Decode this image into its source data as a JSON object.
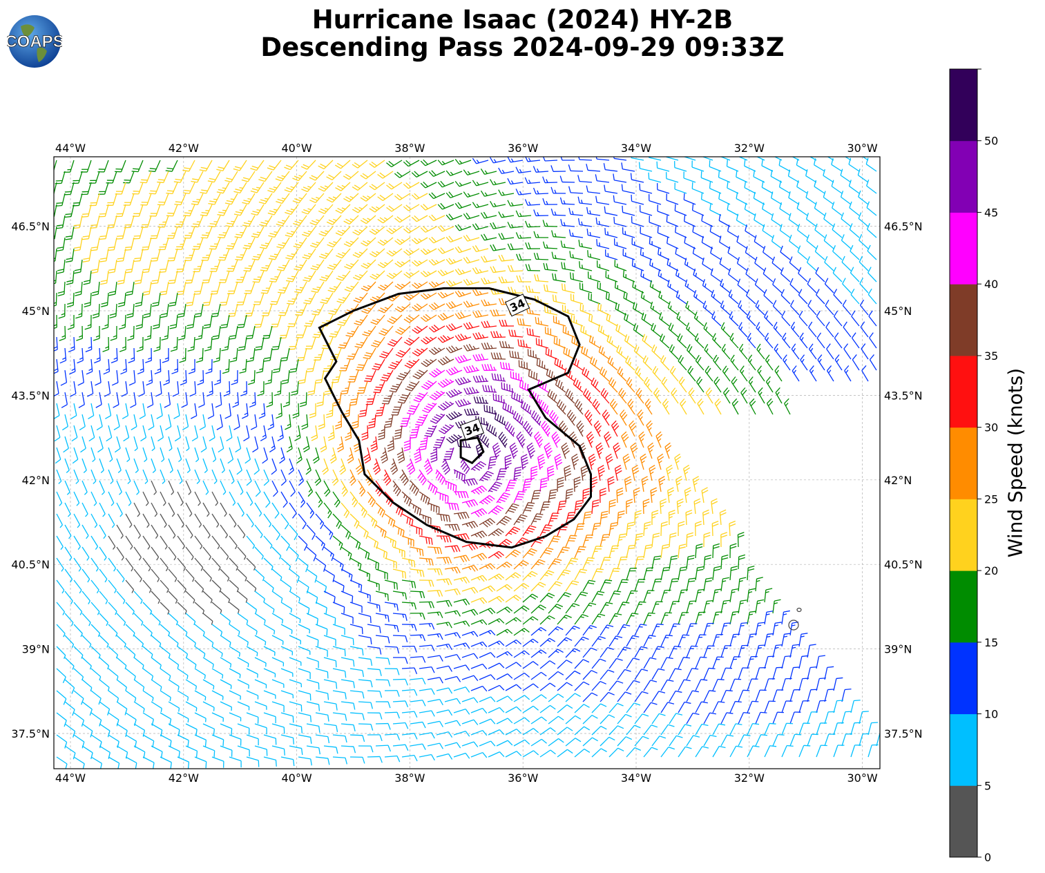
{
  "title": {
    "line1": "Hurricane Isaac (2024) HY-2B",
    "line2": "Descending Pass 2024-09-29 09:33Z"
  },
  "logo": {
    "text": "COAPS"
  },
  "map": {
    "lon_range": [
      -44.3,
      -29.7
    ],
    "lat_range": [
      36.9,
      47.7
    ],
    "lon_ticks": [
      "44°W",
      "42°W",
      "40°W",
      "38°W",
      "36°W",
      "34°W",
      "32°W",
      "30°W"
    ],
    "lat_ticks": [
      "37.5°N",
      "39°N",
      "40.5°N",
      "42°N",
      "43.5°N",
      "45°N",
      "46.5°N"
    ],
    "gridlines": true,
    "storm_center": {
      "lon": -37.0,
      "lat": 42.4
    },
    "contour_label": "34",
    "contour_label_count": 2
  },
  "colorbar": {
    "label": "Wind Speed (knots)",
    "ticks": [
      "0",
      "5",
      "10",
      "15",
      "20",
      "25",
      "30",
      "35",
      "40",
      "45",
      "50"
    ],
    "bins": [
      {
        "from": 0,
        "to": 5,
        "color": "#555555"
      },
      {
        "from": 5,
        "to": 10,
        "color": "#00bfff"
      },
      {
        "from": 10,
        "to": 15,
        "color": "#0033ff"
      },
      {
        "from": 15,
        "to": 20,
        "color": "#008c00"
      },
      {
        "from": 20,
        "to": 25,
        "color": "#ffd21e"
      },
      {
        "from": 25,
        "to": 30,
        "color": "#ff8c00"
      },
      {
        "from": 30,
        "to": 35,
        "color": "#ff1010"
      },
      {
        "from": 35,
        "to": 40,
        "color": "#7f3c28"
      },
      {
        "from": 40,
        "to": 45,
        "color": "#ff00ff"
      },
      {
        "from": 45,
        "to": 50,
        "color": "#8200b4"
      },
      {
        "from": 50,
        "to": 55,
        "color": "#32005a"
      }
    ]
  }
}
